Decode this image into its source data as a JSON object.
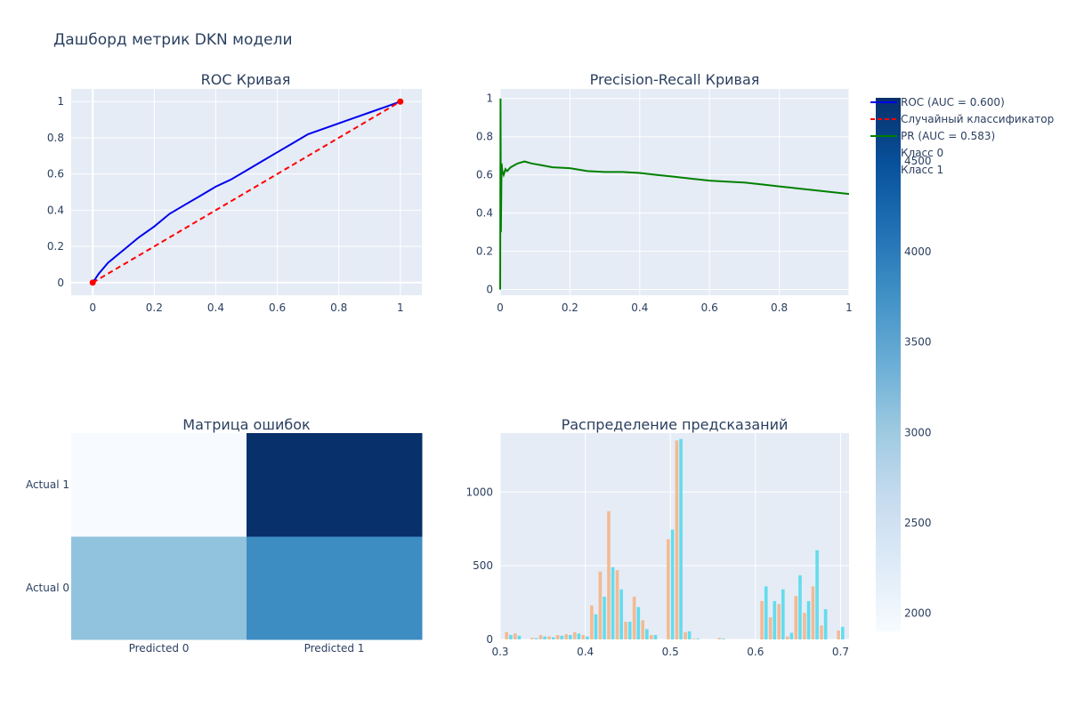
{
  "title": "Дашборд метрик DKN модели",
  "colors": {
    "plot_bg": "#e5ecf6",
    "grid": "#ffffff",
    "roc": "#0000ee",
    "random": "#ff0000",
    "pr": "#008000",
    "class0": "#f4b183",
    "class1": "#4dd9ec"
  },
  "legend": {
    "items": [
      {
        "label": "ROC (AUC = 0.600)",
        "kind": "line",
        "color": "#0000ee"
      },
      {
        "label": "Случайный классификатор",
        "kind": "dash",
        "color": "#ff0000"
      },
      {
        "label": "PR (AUC = 0.583)",
        "kind": "line",
        "color": "#008000"
      },
      {
        "label": "Класс 0",
        "kind": "none",
        "color": "#f4b183"
      },
      {
        "label": "Класс 1",
        "kind": "none",
        "color": "#4dd9ec"
      }
    ]
  },
  "chart_data": [
    {
      "type": "line",
      "title": "ROC Кривая",
      "xlim": [
        -0.07,
        1.07
      ],
      "ylim": [
        -0.07,
        1.07
      ],
      "xticks": [
        "0",
        "0.2",
        "0.4",
        "0.6",
        "0.8",
        "1"
      ],
      "yticks": [
        "0",
        "0.2",
        "0.4",
        "0.6",
        "0.8",
        "1"
      ],
      "grid": true,
      "series": [
        {
          "name": "ROC (AUC = 0.600)",
          "x": [
            0,
            0.02,
            0.05,
            0.1,
            0.15,
            0.2,
            0.25,
            0.3,
            0.35,
            0.4,
            0.45,
            0.5,
            0.55,
            0.6,
            0.65,
            0.7,
            0.75,
            0.8,
            0.85,
            0.9,
            0.95,
            1
          ],
          "y": [
            0,
            0.05,
            0.11,
            0.18,
            0.25,
            0.31,
            0.38,
            0.43,
            0.48,
            0.53,
            0.57,
            0.62,
            0.67,
            0.72,
            0.77,
            0.82,
            0.85,
            0.88,
            0.91,
            0.94,
            0.97,
            1
          ]
        },
        {
          "name": "Случайный классификатор",
          "x": [
            0,
            1
          ],
          "y": [
            0,
            1
          ]
        }
      ]
    },
    {
      "type": "line",
      "title": "Precision-Recall Кривая",
      "xlim": [
        0,
        1
      ],
      "ylim": [
        -0.03,
        1.05
      ],
      "xticks": [
        "0",
        "0.2",
        "0.4",
        "0.6",
        "0.8",
        "1"
      ],
      "yticks": [
        "0",
        "0.2",
        "0.4",
        "0.6",
        "0.8",
        "1"
      ],
      "grid": true,
      "series": [
        {
          "name": "PR (AUC = 0.583)",
          "x": [
            0,
            0.001,
            0.002,
            0.004,
            0.006,
            0.01,
            0.015,
            0.02,
            0.03,
            0.05,
            0.07,
            0.09,
            0.12,
            0.15,
            0.2,
            0.25,
            0.3,
            0.35,
            0.4,
            0.45,
            0.5,
            0.55,
            0.6,
            0.65,
            0.7,
            0.75,
            0.8,
            0.85,
            0.9,
            0.95,
            1
          ],
          "y": [
            0,
            1,
            0.3,
            0.66,
            0.62,
            0.6,
            0.63,
            0.62,
            0.64,
            0.66,
            0.67,
            0.66,
            0.65,
            0.64,
            0.635,
            0.62,
            0.615,
            0.615,
            0.61,
            0.6,
            0.59,
            0.58,
            0.57,
            0.565,
            0.56,
            0.55,
            0.54,
            0.53,
            0.52,
            0.51,
            0.5
          ]
        }
      ]
    },
    {
      "type": "heatmap",
      "title": "Матрица ошибок",
      "x_labels": [
        "Predicted 0",
        "Predicted 1"
      ],
      "y_labels": [
        "Actual 0",
        "Actual 1"
      ],
      "z": [
        [
          3100,
          3800
        ],
        [
          1900,
          4850
        ]
      ],
      "colorscale": "Blues",
      "colorbar": {
        "min": 1900,
        "max": 4850,
        "ticks": [
          "2000",
          "2500",
          "3000",
          "3500",
          "4000",
          "4500"
        ]
      }
    },
    {
      "type": "bar",
      "title": "Распределение предсказаний",
      "xlim": [
        0.3,
        0.71
      ],
      "ylim": [
        0,
        1400
      ],
      "xticks": [
        "0.3",
        "0.4",
        "0.5",
        "0.6",
        "0.7"
      ],
      "yticks": [
        "0",
        "500",
        "1000"
      ],
      "bin_width": 0.01,
      "series": [
        {
          "name": "Класс 0",
          "x": [
            0.31,
            0.32,
            0.34,
            0.35,
            0.36,
            0.37,
            0.38,
            0.39,
            0.4,
            0.41,
            0.42,
            0.43,
            0.44,
            0.45,
            0.46,
            0.47,
            0.48,
            0.5,
            0.51,
            0.52,
            0.53,
            0.56,
            0.61,
            0.62,
            0.63,
            0.64,
            0.65,
            0.66,
            0.67,
            0.68,
            0.7
          ],
          "values": [
            50,
            40,
            10,
            30,
            20,
            30,
            35,
            50,
            30,
            230,
            460,
            870,
            470,
            120,
            290,
            130,
            30,
            680,
            1350,
            50,
            5,
            10,
            260,
            150,
            240,
            20,
            295,
            180,
            360,
            95,
            60
          ]
        },
        {
          "name": "Класс 1",
          "x": [
            0.31,
            0.32,
            0.34,
            0.35,
            0.36,
            0.37,
            0.38,
            0.39,
            0.4,
            0.41,
            0.42,
            0.43,
            0.44,
            0.45,
            0.46,
            0.47,
            0.48,
            0.5,
            0.51,
            0.52,
            0.53,
            0.56,
            0.61,
            0.62,
            0.63,
            0.64,
            0.65,
            0.66,
            0.67,
            0.68,
            0.7
          ],
          "values": [
            30,
            25,
            8,
            20,
            15,
            25,
            30,
            40,
            20,
            170,
            290,
            490,
            340,
            120,
            220,
            70,
            30,
            745,
            1360,
            55,
            5,
            5,
            360,
            260,
            340,
            45,
            435,
            260,
            605,
            205,
            85
          ]
        }
      ]
    }
  ]
}
